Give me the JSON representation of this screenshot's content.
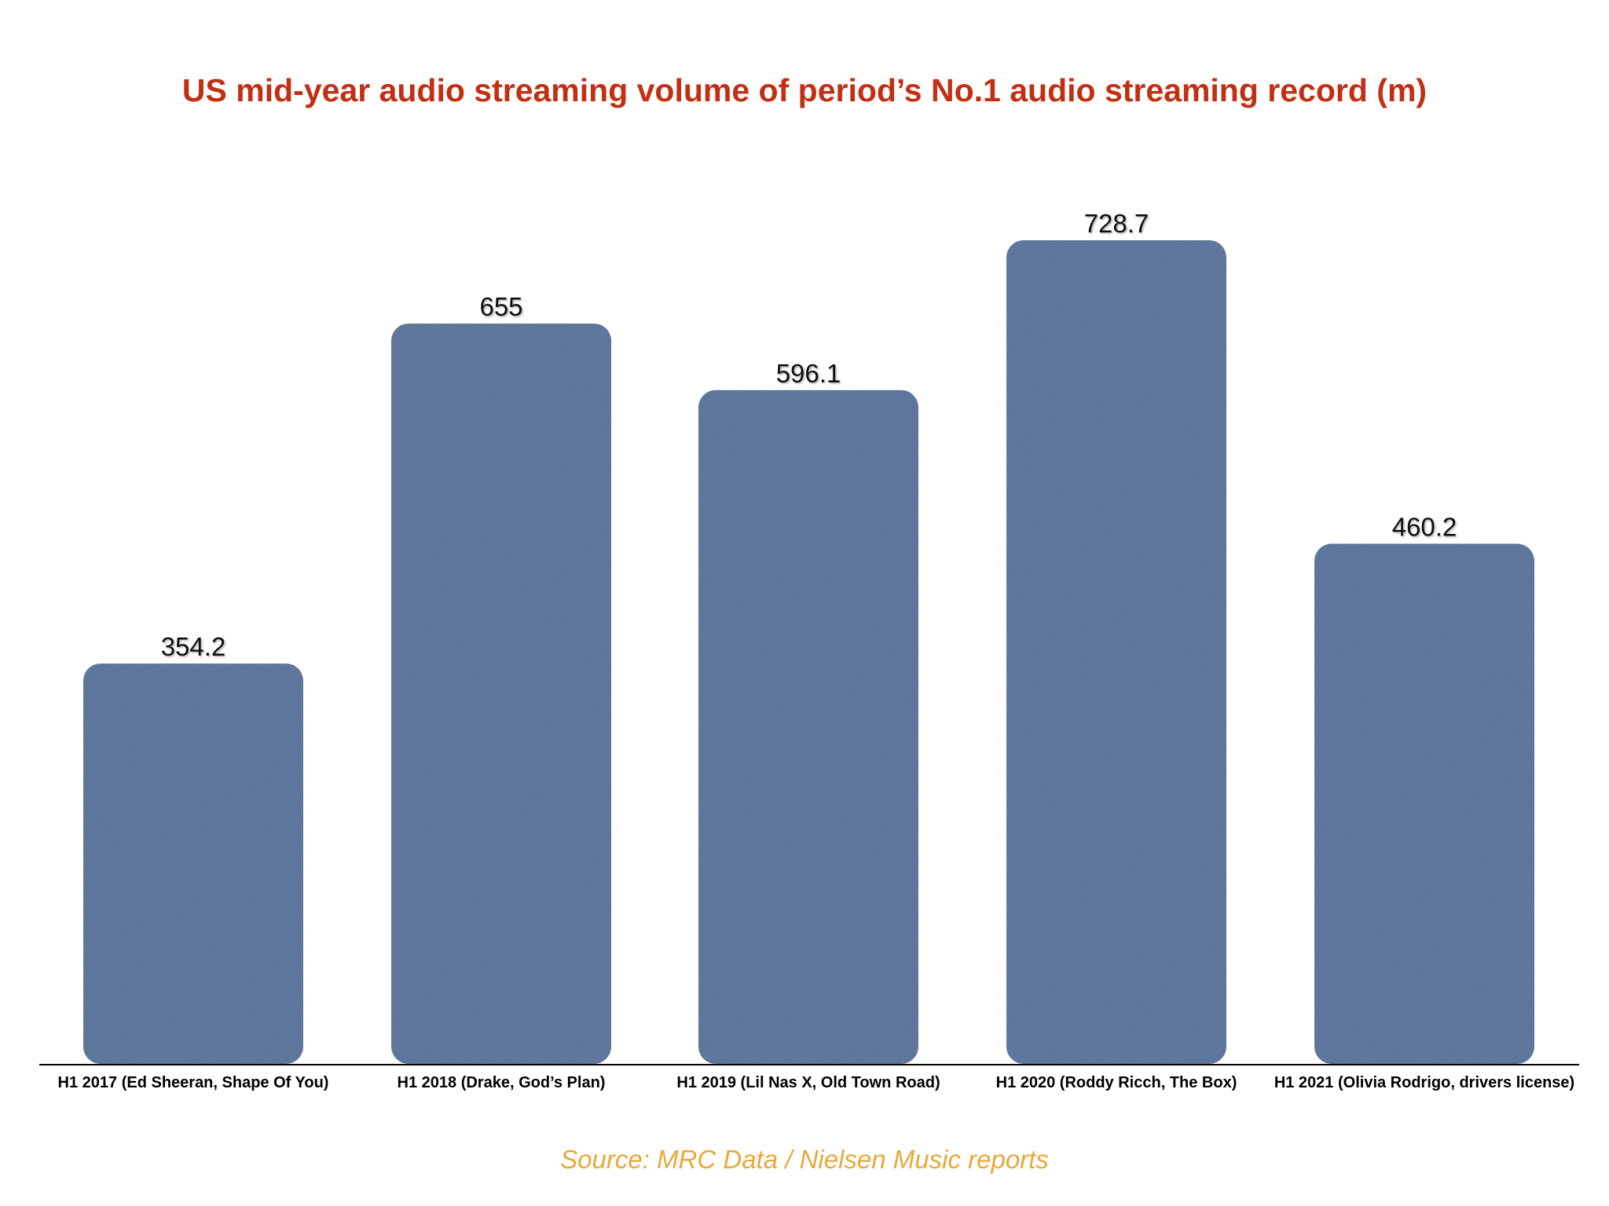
{
  "chart_data": {
    "type": "bar",
    "title": "US mid-year audio streaming volume of period’s No.1 audio streaming record (m)",
    "categories": [
      "H1 2017 (Ed Sheeran, Shape Of You)",
      "H1 2018 (Drake, God’s Plan)",
      "H1 2019 (Lil Nas X, Old Town Road)",
      "H1 2020 (Roddy Ricch, The Box)",
      "H1 2021 (Olivia Rodrigo, drivers license)"
    ],
    "values": [
      354.2,
      655,
      596.1,
      728.7,
      460.2
    ],
    "value_labels": [
      "354.2",
      "655",
      "596.1",
      "728.7",
      "460.2"
    ],
    "ylim": [
      0,
      728.7
    ],
    "grid": false,
    "bar_color": "#4a6690",
    "title_color": "#c22f12",
    "source_color": "#e8a83a"
  },
  "source": "Source: MRC Data / Nielsen Music reports"
}
